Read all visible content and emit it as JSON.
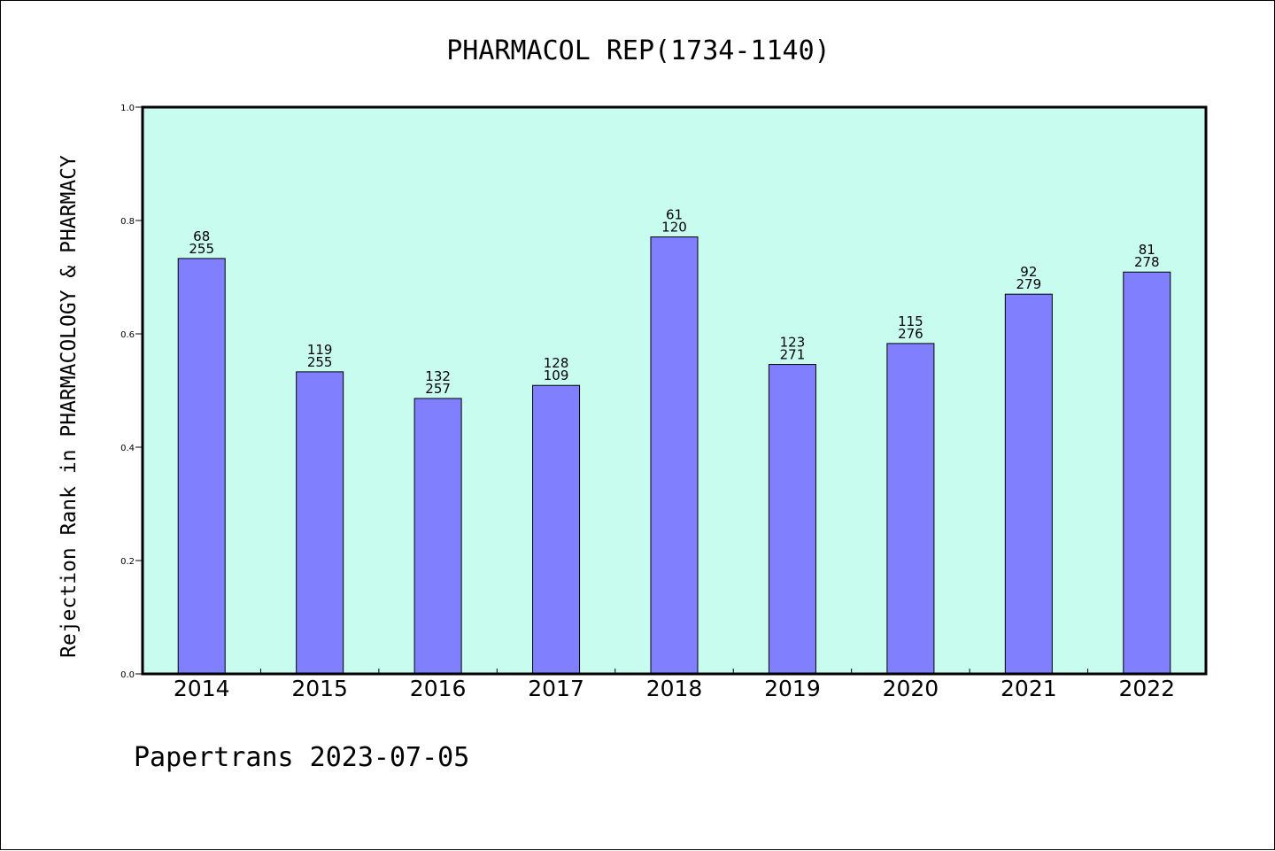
{
  "chart_data": {
    "type": "bar",
    "title": "PHARMACOL REP(1734-1140)",
    "xlabel": "",
    "ylabel": "Rejection Rank in PHARMACOLOGY & PHARMACY",
    "ylim": [
      0,
      1.0
    ],
    "yticks": [
      "0.0",
      "0.2",
      "0.4",
      "0.6",
      "0.8",
      "1.0"
    ],
    "grid": false,
    "categories": [
      "2014",
      "2015",
      "2016",
      "2017",
      "2018",
      "2019",
      "2020",
      "2021",
      "2022"
    ],
    "values": [
      0.733,
      0.533,
      0.486,
      0.509,
      0.771,
      0.546,
      0.583,
      0.67,
      0.709
    ],
    "bar_labels_top": [
      "68",
      "119",
      "132",
      "128",
      "61",
      "123",
      "115",
      "92",
      "81"
    ],
    "bar_labels_bottom": [
      "255",
      "255",
      "257",
      "109",
      "120",
      "271",
      "276",
      "279",
      "278"
    ],
    "colors": {
      "bar": "#8080ff",
      "plot_background": "#c8fcee",
      "axis": "#000000"
    }
  },
  "footer": "Papertrans 2023-07-05"
}
